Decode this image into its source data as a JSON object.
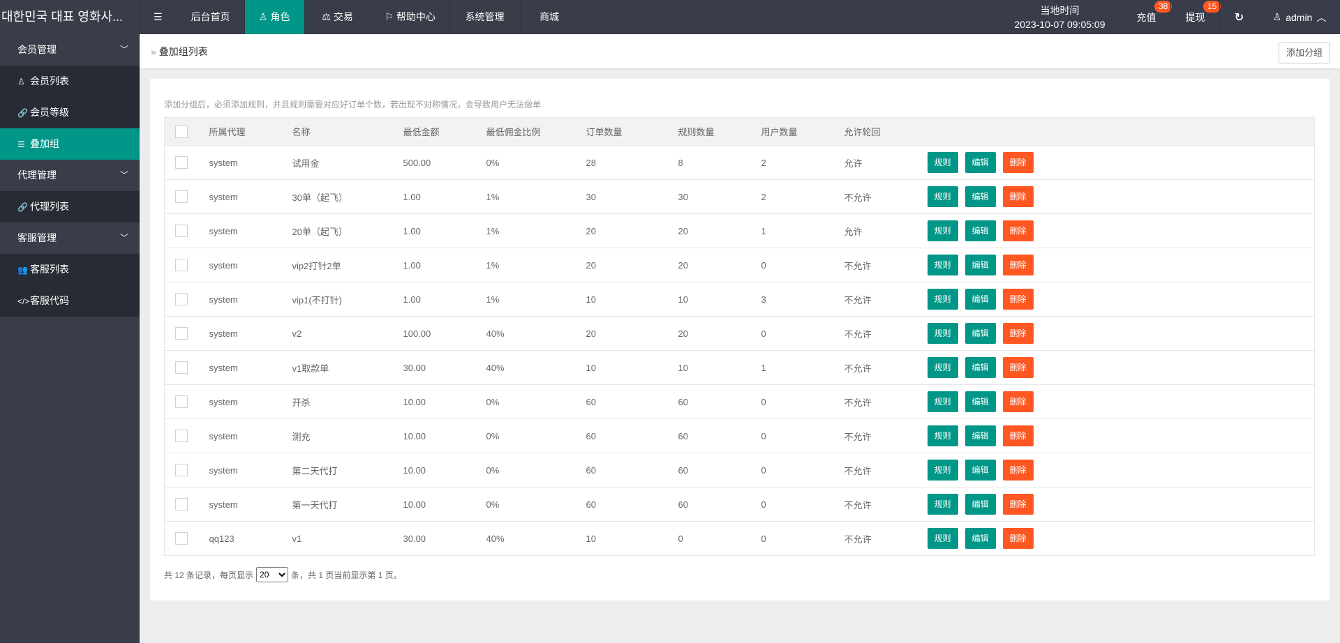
{
  "header": {
    "brand": "대한민국 대표 영화사...",
    "menu_icon": "menu-fold-icon",
    "nav": [
      {
        "label": "后台首页",
        "icon": ""
      },
      {
        "label": "角色",
        "icon": "user-icon",
        "active": true
      },
      {
        "label": "交易",
        "icon": "scale-icon"
      },
      {
        "label": "帮助中心",
        "icon": "flag-icon"
      },
      {
        "label": "系统管理",
        "icon": ""
      },
      {
        "label": "商城",
        "icon": ""
      }
    ],
    "time_label": "当地时间",
    "time_value": "2023-10-07 09:05:09",
    "recharge": {
      "label": "充值",
      "badge": "38"
    },
    "withdraw": {
      "label": "提现",
      "badge": "15"
    },
    "user": "admin"
  },
  "sidebar": {
    "groups": [
      {
        "label": "会员管理",
        "items": [
          {
            "label": "会员列表",
            "icon": "user-icon",
            "glyph": "♙"
          },
          {
            "label": "会员等级",
            "icon": "link-icon",
            "glyph": "🔗"
          },
          {
            "label": "叠加组",
            "icon": "list-icon",
            "glyph": "☰",
            "active": true
          }
        ]
      },
      {
        "label": "代理管理",
        "items": [
          {
            "label": "代理列表",
            "icon": "link-icon",
            "glyph": "🔗"
          }
        ]
      },
      {
        "label": "客服管理",
        "items": [
          {
            "label": "客服列表",
            "icon": "users-icon",
            "glyph": "👥"
          },
          {
            "label": "客服代码",
            "icon": "code-icon",
            "glyph": "</>"
          }
        ]
      }
    ]
  },
  "breadcrumb": {
    "title": "叠加组列表",
    "add_button": "添加分组"
  },
  "hint": "添加分组后，必须添加规则，并且规则需要对应好订单个数，若出现不对称情况，会导致用户无法做单",
  "table": {
    "columns": [
      "所属代理",
      "名称",
      "最低金额",
      "最低佣金比例",
      "订单数量",
      "规则数量",
      "用户数量",
      "允许轮回"
    ],
    "actions": {
      "rules": "规则",
      "edit": "编辑",
      "delete": "删除"
    },
    "rows": [
      [
        "system",
        "试用金",
        "500.00",
        "0%",
        "28",
        "8",
        "2",
        "允许"
      ],
      [
        "system",
        "30单（起飞）",
        "1.00",
        "1%",
        "30",
        "30",
        "2",
        "不允许"
      ],
      [
        "system",
        "20单（起飞）",
        "1.00",
        "1%",
        "20",
        "20",
        "1",
        "允许"
      ],
      [
        "system",
        "vip2打针2单",
        "1.00",
        "1%",
        "20",
        "20",
        "0",
        "不允许"
      ],
      [
        "system",
        "vip1(不打针)",
        "1.00",
        "1%",
        "10",
        "10",
        "3",
        "不允许"
      ],
      [
        "system",
        "v2",
        "100.00",
        "40%",
        "20",
        "20",
        "0",
        "不允许"
      ],
      [
        "system",
        "v1取款单",
        "30.00",
        "40%",
        "10",
        "10",
        "1",
        "不允许"
      ],
      [
        "system",
        "开杀",
        "10.00",
        "0%",
        "60",
        "60",
        "0",
        "不允许"
      ],
      [
        "system",
        "测充",
        "10.00",
        "0%",
        "60",
        "60",
        "0",
        "不允许"
      ],
      [
        "system",
        "第二天代打",
        "10.00",
        "0%",
        "60",
        "60",
        "0",
        "不允许"
      ],
      [
        "system",
        "第一天代打",
        "10.00",
        "0%",
        "60",
        "60",
        "0",
        "不允许"
      ],
      [
        "qq123",
        "v1",
        "30.00",
        "40%",
        "10",
        "0",
        "0",
        "不允许"
      ]
    ]
  },
  "footer": {
    "prefix": "共 12 条记录，每页显示",
    "page_size": "20",
    "suffix": "条，共 1 页当前显示第 1 页。"
  },
  "colors": {
    "accent": "#009688",
    "danger": "#ff5722",
    "topbar": "#393d49"
  }
}
